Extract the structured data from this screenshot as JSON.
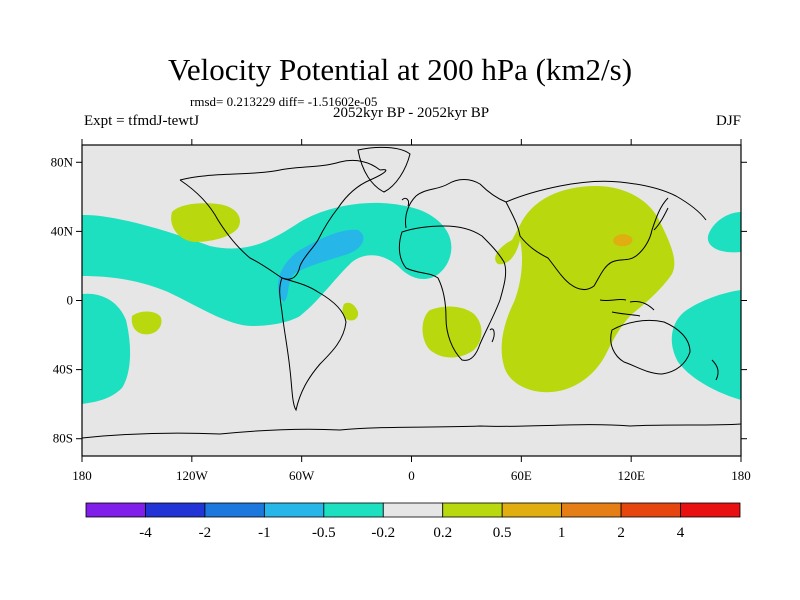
{
  "title": "Velocity Potential at 200 hPa (km2/s)",
  "stats": "rmsd= 0.213229 diff= -1.51602e-05",
  "subtitle": "2052kyr BP - 2052kyr BP",
  "left_string": "Expt = tfmdJ-tewtJ",
  "right_string": "DJF",
  "map": {
    "projection": "cylindrical-equidistant",
    "lon_range": [
      -180,
      180
    ],
    "lat_range": [
      -90,
      90
    ],
    "y_ticks": [
      {
        "lat": 80,
        "label": "80N"
      },
      {
        "lat": 40,
        "label": "40N"
      },
      {
        "lat": 0,
        "label": "0"
      },
      {
        "lat": -40,
        "label": "40S"
      },
      {
        "lat": -80,
        "label": "80S"
      }
    ],
    "x_ticks": [
      {
        "lon": -180,
        "label": "180"
      },
      {
        "lon": -120,
        "label": "120W"
      },
      {
        "lon": -60,
        "label": "60W"
      },
      {
        "lon": 0,
        "label": "0"
      },
      {
        "lon": 60,
        "label": "60E"
      },
      {
        "lon": 120,
        "label": "120E"
      },
      {
        "lon": 180,
        "label": "180"
      }
    ]
  },
  "colors": {
    "ocean_background": "#e6e6e6",
    "neg_0_5": "#1de0c0",
    "neg_1": "#27b6e8",
    "pos_0_2": "#b9d80e",
    "pos_0_5": "#e0ae10",
    "coast": "#000000"
  },
  "colorbar": {
    "colors": [
      "#7f1fe9",
      "#2234d6",
      "#1c78dc",
      "#27b6e8",
      "#1de0c0",
      "#e6e6e6",
      "#b9d80e",
      "#e0ae10",
      "#e57e14",
      "#e6460e",
      "#e81010"
    ],
    "labels": [
      "-4",
      "-2",
      "-1",
      "-0.5",
      "-0.2",
      "0.2",
      "0.5",
      "1",
      "2",
      "4"
    ]
  }
}
